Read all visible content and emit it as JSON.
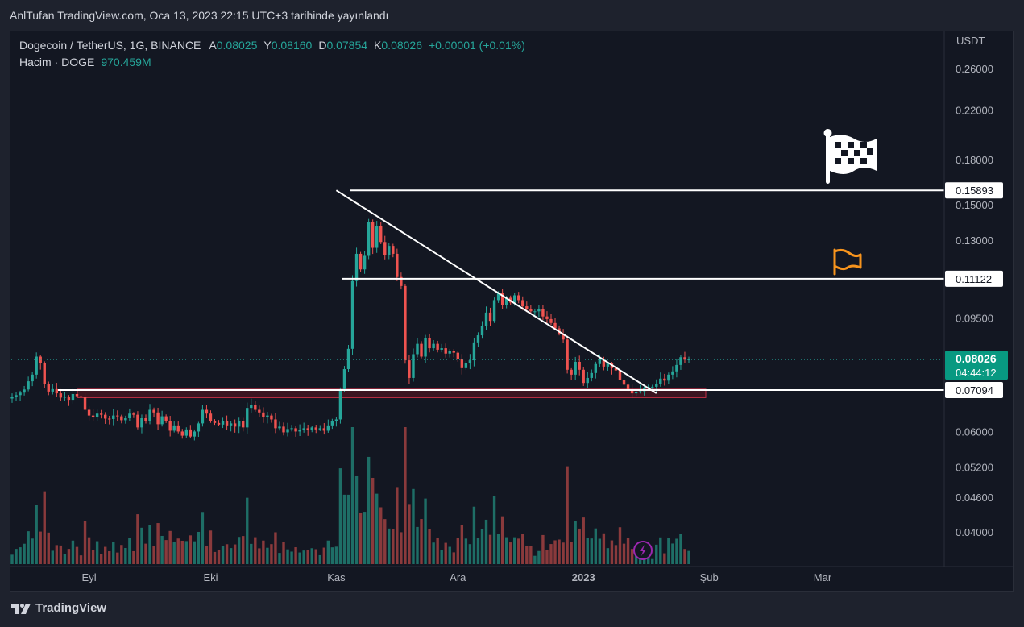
{
  "header": {
    "published_line": "AnlTufan TradingView.com, Oca 13, 2023 22:15 UTC+3 tarihinde yayınlandı"
  },
  "legend": {
    "symbol": "Dogecoin / TetherUS, 1G, BINANCE",
    "o_label": "A",
    "o_value": "0.08025",
    "h_label": "Y",
    "h_value": "0.08160",
    "l_label": "D",
    "l_value": "0.07854",
    "c_label": "K",
    "c_value": "0.08026",
    "change": "+0.00001 (+0.01%)",
    "volume_label": "Hacim · DOGE",
    "volume_value": "970.459M"
  },
  "footer": {
    "brand": "TradingView"
  },
  "colors": {
    "up": "#26a69a",
    "down": "#ef5350",
    "vol_up": "#1e6e66",
    "vol_down": "#8a3a3c",
    "background": "#131722",
    "text": "#d1d4dc",
    "axis_text": "#b2b5be",
    "price_tag": "#089981",
    "zone_fill": "#4a1522",
    "zone_stroke": "#c62f45",
    "flag_orange": "#f7941d"
  },
  "chart_data": {
    "type": "candlestick",
    "y_axis_title": "USDT",
    "y_scale": "log",
    "y_ticks": [
      "0.26000",
      "0.22000",
      "0.18000",
      "0.15000",
      "0.13000",
      "0.09500",
      "0.06000",
      "0.05200",
      "0.04600",
      "0.04000"
    ],
    "x_ticks": [
      {
        "label": "Eyl",
        "date": "2022-09-01"
      },
      {
        "label": "Eki",
        "date": "2022-10-01"
      },
      {
        "label": "Kas",
        "date": "2022-11-01"
      },
      {
        "label": "Ara",
        "date": "2022-12-01"
      },
      {
        "label": "2023",
        "date": "2023-01-01",
        "bold": true
      },
      {
        "label": "Şub",
        "date": "2023-02-01"
      },
      {
        "label": "Mar",
        "date": "2023-03-01"
      }
    ],
    "first_date": "2022-08-13",
    "closes": [
      0.0689,
      0.0695,
      0.0702,
      0.0711,
      0.0735,
      0.0755,
      0.0812,
      0.079,
      0.0727,
      0.0705,
      0.0712,
      0.07,
      0.0688,
      0.069,
      0.0682,
      0.0698,
      0.0692,
      0.069,
      0.0655,
      0.064,
      0.0635,
      0.0645,
      0.0642,
      0.0632,
      0.0631,
      0.064,
      0.0638,
      0.0628,
      0.0633,
      0.0645,
      0.0642,
      0.061,
      0.0633,
      0.0625,
      0.0655,
      0.0648,
      0.0618,
      0.0638,
      0.0625,
      0.0602,
      0.0615,
      0.06,
      0.059,
      0.0605,
      0.0588,
      0.06,
      0.062,
      0.0655,
      0.0645,
      0.0626,
      0.0621,
      0.0617,
      0.0625,
      0.0615,
      0.062,
      0.0612,
      0.0625,
      0.061,
      0.066,
      0.0668,
      0.0655,
      0.0648,
      0.0635,
      0.064,
      0.063,
      0.0608,
      0.0612,
      0.0598,
      0.0606,
      0.0608,
      0.06,
      0.0603,
      0.0608,
      0.0604,
      0.061,
      0.0605,
      0.0608,
      0.0602,
      0.0615,
      0.0625,
      0.063,
      0.0712,
      0.0772,
      0.0838,
      0.1102,
      0.123,
      0.1155,
      0.122,
      0.14,
      0.126,
      0.1375,
      0.129,
      0.1225,
      0.127,
      0.123,
      0.112,
      0.108,
      0.08,
      0.0745,
      0.082,
      0.0855,
      0.0812,
      0.0875,
      0.084,
      0.0855,
      0.0835,
      0.084,
      0.0822,
      0.0832,
      0.0825,
      0.0805,
      0.0775,
      0.079,
      0.08,
      0.086,
      0.0885,
      0.092,
      0.097,
      0.0938,
      0.102,
      0.105,
      0.1,
      0.103,
      0.101,
      0.104,
      0.102,
      0.0995,
      0.0985,
      0.0975,
      0.0975,
      0.0985,
      0.0955,
      0.0945,
      0.093,
      0.091,
      0.089,
      0.087,
      0.077,
      0.0755,
      0.0795,
      0.077,
      0.073,
      0.0745,
      0.076,
      0.0788,
      0.0805,
      0.078,
      0.079,
      0.0775,
      0.0768,
      0.074,
      0.0725,
      0.071,
      0.07,
      0.0704,
      0.0706,
      0.0716,
      0.0719,
      0.0719,
      0.0728,
      0.0743,
      0.0737,
      0.0755,
      0.0765,
      0.0785,
      0.081,
      0.0802,
      0.0803
    ],
    "last_price": "0.08026",
    "countdown": "04:44:12",
    "horizontal_lines": [
      {
        "price": 0.15893,
        "label": "0.15893"
      },
      {
        "price": 0.11122,
        "label": "0.11122"
      },
      {
        "price": 0.07094,
        "label": "0.07094"
      }
    ],
    "support_zone": {
      "from": 0.0688,
      "to": 0.0712
    },
    "trendline": {
      "from": {
        "date": "2022-11-01",
        "price": 0.15893
      },
      "to": {
        "date": "2023-01-19",
        "price": 0.0728
      }
    }
  }
}
